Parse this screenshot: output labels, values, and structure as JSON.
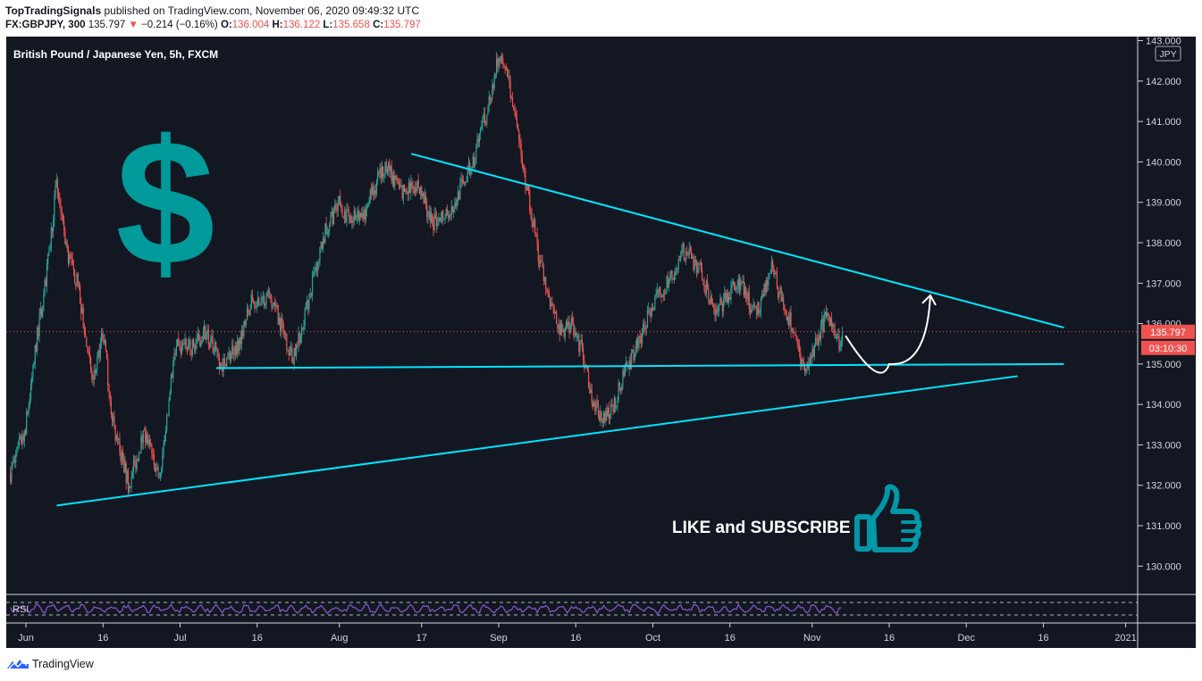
{
  "header": {
    "author": "TopTradingSignals",
    "published_text": "published on TradingView.com, November 06, 2020 09:49:32 UTC",
    "symbol": "FX:GBPJPY, 300",
    "last": "135.797",
    "change": "−0.214 (−0.16%)",
    "o_label": "O:",
    "o": "136.004",
    "h_label": "H:",
    "h": "136.122",
    "l_label": "L:",
    "l": "135.658",
    "c_label": "C:",
    "c": "135.797"
  },
  "chart_title": "British Pound / Japanese Yen, 5h, FXCM",
  "currency_badge": "JPY",
  "dollar_symbol": "$",
  "cta_text": "LIKE and SUBSCRIBE",
  "rsi_label": "RSI",
  "price_label": "135.797",
  "countdown_label": "03:10:30",
  "footer": {
    "brand": "TradingView"
  },
  "colors": {
    "background": "#131722",
    "candle_up": "#26a69a",
    "candle_down": "#ef5350",
    "trendline": "#00e5ff",
    "dollar": "#009a9a",
    "thumb": "#0097a7",
    "rsi_line": "#7e57c2",
    "price_tag": "#ef5350"
  },
  "icons": [
    "dollar-sign-icon",
    "thumbs-up-icon",
    "arrow-curve-icon",
    "tradingview-logo-icon"
  ],
  "chart_data": {
    "type": "candlestick",
    "title": "British Pound / Japanese Yen, 5h, FXCM",
    "ylim": [
      129.3,
      143.1
    ],
    "yticks": [
      143,
      142,
      141,
      140,
      139,
      138,
      137,
      136,
      135,
      134,
      133,
      132,
      131,
      130
    ],
    "ytick_labels": [
      "143.000",
      "142.000",
      "141.000",
      "140.000",
      "139.000",
      "138.000",
      "137.000",
      "136.000",
      "135.000",
      "134.000",
      "133.000",
      "132.000",
      "131.000",
      "130.000"
    ],
    "x_ticks": [
      {
        "label": "Jun",
        "day": 0
      },
      {
        "label": "16",
        "day": 15
      },
      {
        "label": "Jul",
        "day": 30
      },
      {
        "label": "16",
        "day": 45
      },
      {
        "label": "Aug",
        "day": 61
      },
      {
        "label": "17",
        "day": 77
      },
      {
        "label": "Sep",
        "day": 92
      },
      {
        "label": "16",
        "day": 107
      },
      {
        "label": "Oct",
        "day": 122
      },
      {
        "label": "16",
        "day": 137
      },
      {
        "label": "Nov",
        "day": 153
      },
      {
        "label": "16",
        "day": 168
      },
      {
        "label": "Dec",
        "day": 183
      },
      {
        "label": "16",
        "day": 198
      },
      {
        "label": "2021",
        "day": 214
      }
    ],
    "price_path": [
      [
        -3,
        132.3
      ],
      [
        0,
        133.5
      ],
      [
        2,
        135.5
      ],
      [
        4,
        137.2
      ],
      [
        6,
        139.5
      ],
      [
        8,
        137.8
      ],
      [
        10,
        137.0
      ],
      [
        13,
        134.5
      ],
      [
        15,
        135.8
      ],
      [
        17,
        133.5
      ],
      [
        20,
        132.0
      ],
      [
        23,
        133.3
      ],
      [
        26,
        132.1
      ],
      [
        29,
        135.4
      ],
      [
        32,
        135.4
      ],
      [
        35,
        135.8
      ],
      [
        38,
        135.0
      ],
      [
        41,
        135.4
      ],
      [
        44,
        136.6
      ],
      [
        48,
        136.6
      ],
      [
        52,
        135.1
      ],
      [
        55,
        136.6
      ],
      [
        58,
        138.2
      ],
      [
        61,
        139.0
      ],
      [
        63,
        138.5
      ],
      [
        66,
        138.8
      ],
      [
        70,
        140.0
      ],
      [
        73,
        139.2
      ],
      [
        76,
        139.5
      ],
      [
        79,
        138.5
      ],
      [
        83,
        138.9
      ],
      [
        87,
        140.0
      ],
      [
        90,
        141.4
      ],
      [
        92,
        142.6
      ],
      [
        94,
        142.0
      ],
      [
        96,
        140.4
      ],
      [
        98,
        139.0
      ],
      [
        100,
        137.5
      ],
      [
        102,
        136.5
      ],
      [
        104,
        135.8
      ],
      [
        106,
        136.0
      ],
      [
        108,
        135.4
      ],
      [
        110,
        134.2
      ],
      [
        112,
        133.6
      ],
      [
        114,
        133.8
      ],
      [
        116,
        134.6
      ],
      [
        118,
        135.2
      ],
      [
        120,
        135.8
      ],
      [
        122,
        136.5
      ],
      [
        125,
        137.0
      ],
      [
        128,
        137.8
      ],
      [
        131,
        137.4
      ],
      [
        134,
        136.2
      ],
      [
        136,
        136.6
      ],
      [
        139,
        137.0
      ],
      [
        142,
        136.2
      ],
      [
        145,
        137.4
      ],
      [
        147,
        136.6
      ],
      [
        149,
        136.0
      ],
      [
        151,
        135.0
      ],
      [
        152,
        134.9
      ],
      [
        154,
        135.6
      ],
      [
        156,
        136.3
      ],
      [
        158,
        135.5
      ],
      [
        159,
        135.8
      ]
    ],
    "last_price": 135.797,
    "horizontal_line": 135.8,
    "trendlines": [
      {
        "from": [
          75,
          140.2
        ],
        "to": [
          202,
          135.9
        ]
      },
      {
        "from": [
          37,
          134.9
        ],
        "to": [
          202,
          135.0
        ]
      },
      {
        "from": [
          6,
          131.5
        ],
        "to": [
          193,
          134.7
        ]
      }
    ],
    "arrow_path": [
      [
        159.5,
        135.7
      ],
      [
        168,
        135.0
      ],
      [
        176,
        136.7
      ]
    ],
    "rsi": {
      "label": "RSI",
      "upper": 70,
      "lower": 30,
      "ylim": [
        0,
        100
      ]
    }
  }
}
